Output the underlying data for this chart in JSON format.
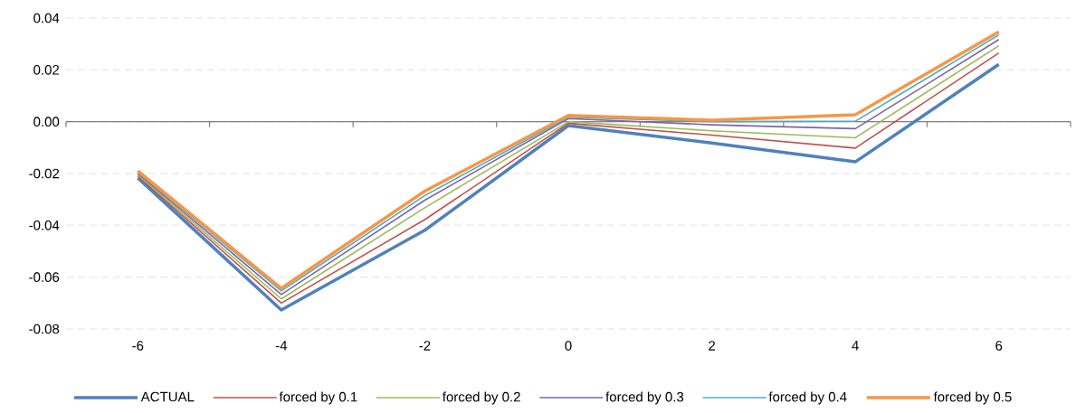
{
  "chart_data": {
    "type": "line",
    "categories": [
      "-6",
      "-4",
      "-2",
      "0",
      "2",
      "4",
      "6"
    ],
    "series": [
      {
        "name": "ACTUAL",
        "color": "#4f81bd",
        "values": [
          -0.0217,
          -0.0727,
          -0.0419,
          -0.0015,
          -0.0082,
          -0.0155,
          0.0221
        ]
      },
      {
        "name": "forced by 0.1",
        "color": "#c0504d",
        "values": [
          -0.021,
          -0.07,
          -0.0378,
          -0.0006,
          -0.0052,
          -0.0102,
          0.0265
        ]
      },
      {
        "name": "forced by 0.2",
        "color": "#9bbb59",
        "values": [
          -0.0205,
          -0.0684,
          -0.0332,
          0.0,
          -0.0035,
          -0.0062,
          0.0293
        ]
      },
      {
        "name": "forced by 0.3",
        "color": "#8064a2",
        "values": [
          -0.02,
          -0.0667,
          -0.0303,
          0.0012,
          -0.0012,
          -0.0027,
          0.0317
        ]
      },
      {
        "name": "forced by 0.4",
        "color": "#4bacc6",
        "values": [
          -0.0195,
          -0.0653,
          -0.0285,
          0.0017,
          0.0,
          0.0002,
          0.0335
        ]
      },
      {
        "name": "forced by 0.5",
        "color": "#f79646",
        "values": [
          -0.019,
          -0.0643,
          -0.0268,
          0.0024,
          0.0006,
          0.0027,
          0.0347
        ]
      }
    ],
    "ylim": [
      -0.08,
      0.04
    ],
    "yticks": [
      {
        "value": -0.08,
        "label": "-0.08"
      },
      {
        "value": -0.06,
        "label": "-0.06"
      },
      {
        "value": -0.04,
        "label": "-0.04"
      },
      {
        "value": -0.02,
        "label": "-0.02"
      },
      {
        "value": 0,
        "label": "0.00"
      },
      {
        "value": 0.02,
        "label": "0.02"
      },
      {
        "value": 0.04,
        "label": "0.04"
      }
    ],
    "grid": "y",
    "legend": "bottom",
    "marker": "none",
    "line_style": "solid"
  }
}
